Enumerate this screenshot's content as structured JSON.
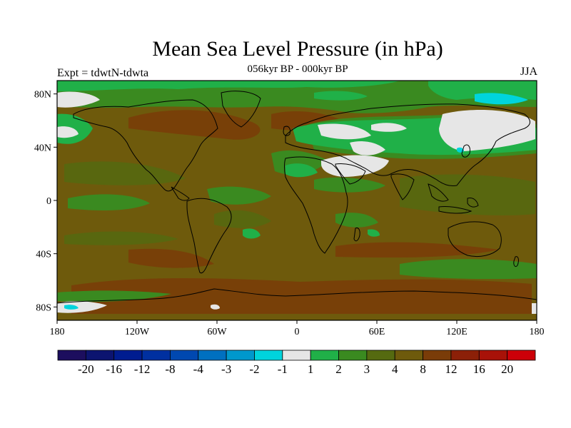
{
  "header": {
    "title": "Mean Sea Level Pressure (in hPa)",
    "subtitle": "056kyr BP - 000kyr BP",
    "left_label": "Expt = tdwtN-tdwta",
    "right_label": "JJA"
  },
  "map": {
    "projection": "cylindrical-equidistant",
    "lon_range": [
      -180,
      180
    ],
    "lat_range": [
      -90,
      90
    ],
    "lat_ticks": [
      {
        "value": 80,
        "label": "80N"
      },
      {
        "value": 40,
        "label": "40N"
      },
      {
        "value": 0,
        "label": "0"
      },
      {
        "value": -40,
        "label": "40S"
      },
      {
        "value": -80,
        "label": "80S"
      }
    ],
    "lon_ticks": [
      {
        "value": -180,
        "label": "180"
      },
      {
        "value": -120,
        "label": "120W"
      },
      {
        "value": -60,
        "label": "60W"
      },
      {
        "value": 0,
        "label": "0"
      },
      {
        "value": 60,
        "label": "60E"
      },
      {
        "value": 120,
        "label": "120E"
      },
      {
        "value": 180,
        "label": "180"
      }
    ],
    "background_level_color": "#6e5a0c"
  },
  "colorbar": {
    "colors": [
      "#1c0e5e",
      "#0c1470",
      "#001c90",
      "#0030a0",
      "#0048b0",
      "#0070c0",
      "#0098cc",
      "#00d4dc",
      "#e6e6e6",
      "#20b048",
      "#3a8a20",
      "#556a10",
      "#6e5a0c",
      "#7a3c08",
      "#8c2008",
      "#a81208",
      "#cc0008"
    ],
    "labels": [
      "-20",
      "-16",
      "-12",
      "-8",
      "-4",
      "-3",
      "-2",
      "-1",
      "1",
      "2",
      "3",
      "4",
      "8",
      "12",
      "16",
      "20"
    ]
  }
}
